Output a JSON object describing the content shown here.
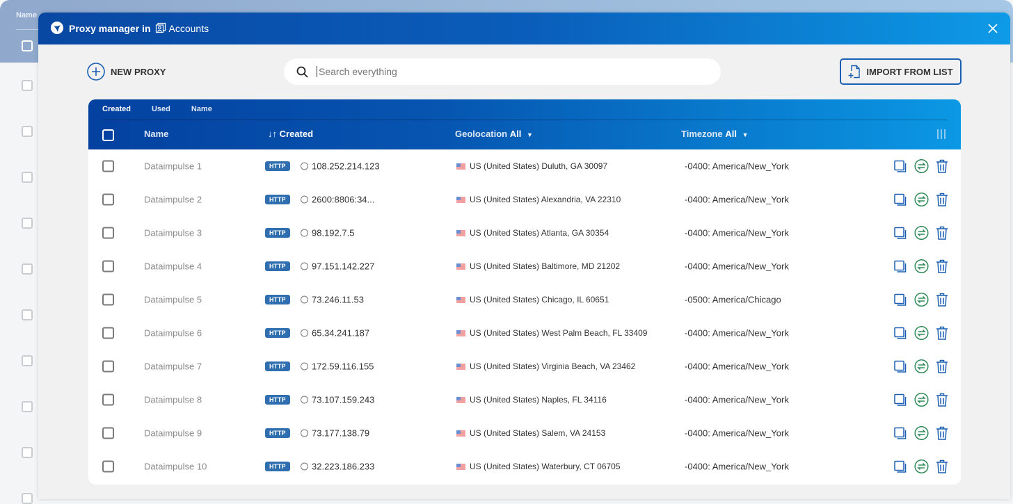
{
  "background": {
    "column_label": "Name"
  },
  "modal": {
    "title": "Proxy manager in",
    "workspace": "Accounts"
  },
  "toolbar": {
    "new_proxy": "NEW PROXY",
    "search_placeholder": "Search everything",
    "search_value": "",
    "import": "IMPORT FROM LIST"
  },
  "sort_tabs": [
    {
      "label": "Created",
      "active": true
    },
    {
      "label": "Used",
      "active": false
    },
    {
      "label": "Name",
      "active": false
    }
  ],
  "columns": {
    "name": "Name",
    "created": "Created",
    "sort_arrows": "↓↑",
    "geolocation": "Geolocation",
    "geo_filter": "All",
    "timezone": "Timezone",
    "tz_filter": "All"
  },
  "colors": {
    "accent": "#1a5fb4",
    "header_start": "#0441a0",
    "header_end": "#0b98e4",
    "rotate_icon": "#2e8b57"
  },
  "rows": [
    {
      "name": "Dataimpulse 1",
      "protocol": "HTTP",
      "ip": "108.252.214.123",
      "geo": "US (United States) Duluth, GA 30097",
      "tz": "-0400: America/New_York"
    },
    {
      "name": "Dataimpulse 2",
      "protocol": "HTTP",
      "ip": "2600:8806:34...",
      "geo": "US (United States) Alexandria, VA 22310",
      "tz": "-0400: America/New_York"
    },
    {
      "name": "Dataimpulse 3",
      "protocol": "HTTP",
      "ip": "98.192.7.5",
      "geo": "US (United States) Atlanta, GA 30354",
      "tz": "-0400: America/New_York"
    },
    {
      "name": "Dataimpulse 4",
      "protocol": "HTTP",
      "ip": "97.151.142.227",
      "geo": "US (United States) Baltimore, MD 21202",
      "tz": "-0400: America/New_York"
    },
    {
      "name": "Dataimpulse 5",
      "protocol": "HTTP",
      "ip": "73.246.11.53",
      "geo": "US (United States) Chicago, IL 60651",
      "tz": "-0500: America/Chicago"
    },
    {
      "name": "Dataimpulse 6",
      "protocol": "HTTP",
      "ip": "65.34.241.187",
      "geo": "US (United States) West Palm Beach, FL 33409",
      "tz": "-0400: America/New_York"
    },
    {
      "name": "Dataimpulse 7",
      "protocol": "HTTP",
      "ip": "172.59.116.155",
      "geo": "US (United States) Virginia Beach, VA 23462",
      "tz": "-0400: America/New_York"
    },
    {
      "name": "Dataimpulse 8",
      "protocol": "HTTP",
      "ip": "73.107.159.243",
      "geo": "US (United States) Naples, FL 34116",
      "tz": "-0400: America/New_York"
    },
    {
      "name": "Dataimpulse 9",
      "protocol": "HTTP",
      "ip": "73.177.138.79",
      "geo": "US (United States) Salem, VA 24153",
      "tz": "-0400: America/New_York"
    },
    {
      "name": "Dataimpulse 10",
      "protocol": "HTTP",
      "ip": "32.223.186.233",
      "geo": "US (United States) Waterbury, CT 06705",
      "tz": "-0400: America/New_York"
    }
  ]
}
